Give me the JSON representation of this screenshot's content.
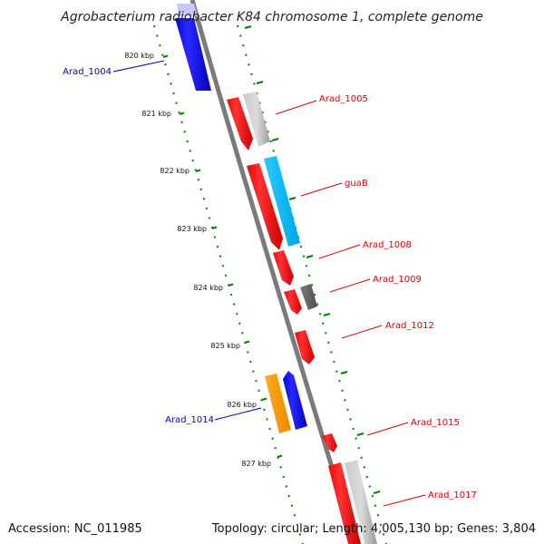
{
  "title": "Agrobacterium radiobacter K84 chromosome 1, complete genome",
  "footer": {
    "accession": "Accession: NC_011985",
    "summary": "Topology: circular; Length: 4,005,130 bp; Genes: 3,804"
  },
  "ticks": [
    "820 kbp",
    "821 kbp",
    "822 kbp",
    "823 kbp",
    "824 kbp",
    "825 kbp",
    "826 kbp",
    "827 kbp"
  ],
  "genes": [
    {
      "name": "Arad_1004",
      "strand": "forward",
      "color": "#0000ff"
    },
    {
      "name": "Arad_1005",
      "strand": "reverse",
      "color": "#ff0000"
    },
    {
      "name": "guaB",
      "strand": "reverse",
      "color": "#ff0000"
    },
    {
      "name": "Arad_1008",
      "strand": "reverse",
      "color": "#ff0000"
    },
    {
      "name": "Arad_1009",
      "strand": "reverse",
      "color": "#ff0000"
    },
    {
      "name": "Arad_1012",
      "strand": "reverse",
      "color": "#ff0000"
    },
    {
      "name": "Arad_1014",
      "strand": "forward",
      "color": "#0000ff"
    },
    {
      "name": "Arad_1015",
      "strand": "reverse",
      "color": "#ff0000"
    },
    {
      "name": "Arad_1017",
      "strand": "reverse",
      "color": "#ff0000"
    }
  ],
  "colors": {
    "backbone": "#808080",
    "tick_marks": "#008000",
    "forward_cds": "#0000ff",
    "reverse_cds": "#ff0000",
    "gray_feature": "#b0b0b0",
    "dark_gray_feature": "#606060",
    "cyan_feature": "#00bfff",
    "orange_feature": "#ff9900"
  }
}
